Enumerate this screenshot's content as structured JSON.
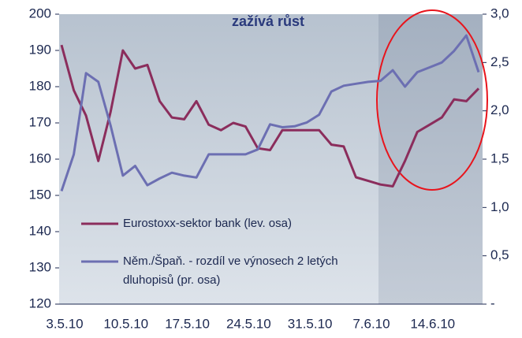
{
  "chart_data": {
    "type": "line",
    "title": "zažívá růst",
    "categories": [
      "3.5.10",
      null,
      null,
      null,
      null,
      "10.5.10",
      null,
      null,
      null,
      null,
      "17.5.10",
      null,
      null,
      null,
      null,
      "24.5.10",
      null,
      null,
      null,
      null,
      "31.5.10",
      null,
      null,
      null,
      null,
      "7.6.10",
      null,
      null,
      null,
      null,
      "14.6.10",
      null,
      null,
      null,
      null
    ],
    "ylim": [
      120,
      200
    ],
    "yticks": [
      120,
      130,
      140,
      150,
      160,
      170,
      180,
      190,
      200
    ],
    "y2lim": [
      0,
      3
    ],
    "y2ticks": [
      {
        "value": 0,
        "label": "-"
      },
      {
        "value": 0.5,
        "label": "0,5"
      },
      {
        "value": 1,
        "label": "1,0"
      },
      {
        "value": 1.5,
        "label": "1,5"
      },
      {
        "value": 2,
        "label": "2,0"
      },
      {
        "value": 2.5,
        "label": "2,5"
      },
      {
        "value": 3,
        "label": "3,0"
      }
    ],
    "legend": "inside-bottom-left",
    "series": [
      {
        "name": "Eurostoxx-sektor bank  (lev. osa)",
        "color": "#8b2d5c",
        "axis": "y",
        "values": [
          191.5,
          179,
          172,
          159.5,
          173,
          190,
          185,
          186,
          176,
          171.5,
          171,
          176,
          169.5,
          168,
          170,
          169,
          163,
          162.5,
          168,
          168,
          168,
          168,
          164,
          163.5,
          155,
          154,
          153,
          152.5,
          159.5,
          167.5,
          169.5,
          171.5,
          176.5,
          176,
          179.5
        ]
      },
      {
        "name": "Něm./Špaň. - rozdíl ve výnosech 2 letých dluhopisů (pr. osa)",
        "color": "#6c6fb2",
        "axis": "y2",
        "values": [
          1.17,
          1.55,
          2.39,
          2.3,
          1.85,
          1.33,
          1.43,
          1.23,
          1.3,
          1.36,
          1.33,
          1.31,
          1.55,
          1.55,
          1.55,
          1.55,
          1.6,
          1.86,
          1.83,
          1.84,
          1.88,
          1.96,
          2.2,
          2.26,
          2.28,
          2.3,
          2.31,
          2.42,
          2.25,
          2.4,
          2.45,
          2.5,
          2.62,
          2.78,
          2.4
        ]
      }
    ]
  }
}
